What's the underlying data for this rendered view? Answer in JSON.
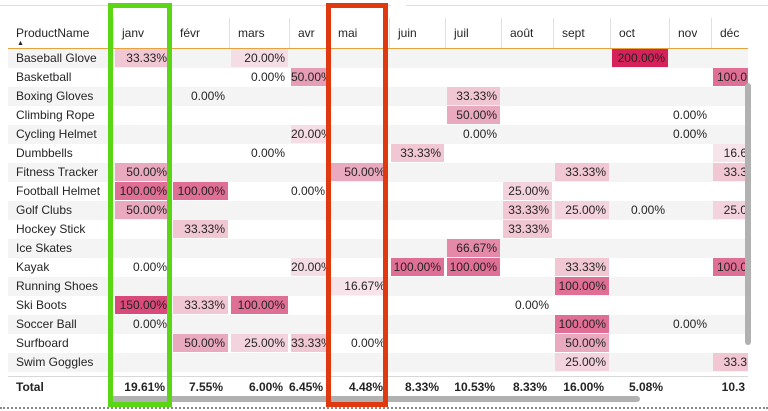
{
  "table": {
    "row_header": "ProductName",
    "months": [
      "janv",
      "févr",
      "mars",
      "avr",
      "mai",
      "juin",
      "juil",
      "août",
      "sept",
      "oct",
      "nov",
      "déc"
    ],
    "rows": [
      {
        "name": "Baseball Glove",
        "cells": [
          {
            "v": "33.33%",
            "c": "#f0c7d3"
          },
          null,
          {
            "v": "20.00%",
            "c": "#f5dde5"
          },
          null,
          null,
          null,
          null,
          null,
          null,
          {
            "v": "200.00%",
            "c": "#d6225a"
          },
          null,
          null
        ]
      },
      {
        "name": "Basketball",
        "cells": [
          null,
          null,
          {
            "v": "0.00%",
            "c": ""
          },
          {
            "v": "50.00%",
            "c": "#e79db5"
          },
          null,
          null,
          null,
          null,
          null,
          null,
          null,
          {
            "v": "100.0",
            "c": "#df6f95"
          }
        ]
      },
      {
        "name": "Boxing Gloves",
        "cells": [
          null,
          {
            "v": "0.00%",
            "c": ""
          },
          null,
          null,
          null,
          null,
          {
            "v": "33.33%",
            "c": "#f0c7d3"
          },
          null,
          null,
          null,
          null,
          null
        ]
      },
      {
        "name": "Climbing Rope",
        "cells": [
          null,
          null,
          null,
          null,
          null,
          null,
          {
            "v": "50.00%",
            "c": "#e9a9be"
          },
          null,
          null,
          null,
          {
            "v": "0.00%",
            "c": ""
          },
          null
        ]
      },
      {
        "name": "Cycling Helmet",
        "cells": [
          null,
          null,
          null,
          {
            "v": "20.00%",
            "c": "#f5dde5"
          },
          null,
          null,
          {
            "v": "0.00%",
            "c": ""
          },
          null,
          null,
          null,
          {
            "v": "0.00%",
            "c": ""
          },
          null
        ]
      },
      {
        "name": "Dumbbells",
        "cells": [
          null,
          null,
          {
            "v": "0.00%",
            "c": ""
          },
          null,
          null,
          {
            "v": "33.33%",
            "c": "#f0c7d3"
          },
          null,
          null,
          null,
          null,
          null,
          {
            "v": "16.6",
            "c": "#f7e3ea"
          }
        ]
      },
      {
        "name": "Fitness Tracker",
        "cells": [
          {
            "v": "50.00%",
            "c": "#e9a9be"
          },
          null,
          null,
          null,
          {
            "v": "50.00%",
            "c": "#e9a9be"
          },
          null,
          null,
          null,
          {
            "v": "33.33%",
            "c": "#f0c7d3"
          },
          null,
          null,
          {
            "v": "33.3",
            "c": "#f0c7d3"
          }
        ]
      },
      {
        "name": "Football Helmet",
        "cells": [
          {
            "v": "100.00%",
            "c": "#df6f95"
          },
          {
            "v": "100.00%",
            "c": "#df6f95"
          },
          null,
          {
            "v": "0.00%",
            "c": ""
          },
          null,
          null,
          null,
          {
            "v": "25.00%",
            "c": "#f3d3dd"
          },
          null,
          null,
          null,
          null
        ]
      },
      {
        "name": "Golf Clubs",
        "cells": [
          {
            "v": "50.00%",
            "c": "#e9a9be"
          },
          null,
          null,
          null,
          null,
          null,
          null,
          {
            "v": "33.33%",
            "c": "#f0c7d3"
          },
          {
            "v": "25.00%",
            "c": "#f3d3dd"
          },
          {
            "v": "0.00%",
            "c": ""
          },
          null,
          {
            "v": "25.0",
            "c": "#f3d3dd"
          }
        ]
      },
      {
        "name": "Hockey Stick",
        "cells": [
          null,
          {
            "v": "33.33%",
            "c": "#f0c7d3"
          },
          null,
          null,
          null,
          null,
          null,
          {
            "v": "33.33%",
            "c": "#f0c7d3"
          },
          null,
          null,
          null,
          null
        ]
      },
      {
        "name": "Ice Skates",
        "cells": [
          null,
          null,
          null,
          null,
          null,
          null,
          {
            "v": "66.67%",
            "c": "#e48aa8"
          },
          null,
          null,
          null,
          null,
          null
        ]
      },
      {
        "name": "Kayak",
        "cells": [
          {
            "v": "0.00%",
            "c": ""
          },
          null,
          null,
          {
            "v": "20.00%",
            "c": "#f5dde5"
          },
          null,
          {
            "v": "100.00%",
            "c": "#df6f95"
          },
          {
            "v": "100.00%",
            "c": "#df6f95"
          },
          null,
          {
            "v": "33.33%",
            "c": "#f0c7d3"
          },
          null,
          null,
          {
            "v": "100.0",
            "c": "#df6f95"
          }
        ]
      },
      {
        "name": "Running Shoes",
        "cells": [
          null,
          null,
          null,
          null,
          {
            "v": "16.67%",
            "c": "#f7e3ea"
          },
          null,
          null,
          null,
          {
            "v": "100.00%",
            "c": "#df6f95"
          },
          null,
          null,
          null
        ]
      },
      {
        "name": "Ski Boots",
        "cells": [
          {
            "v": "150.00%",
            "c": "#d94a7b"
          },
          {
            "v": "33.33%",
            "c": "#f0c7d3"
          },
          {
            "v": "100.00%",
            "c": "#df6f95"
          },
          null,
          null,
          null,
          null,
          {
            "v": "0.00%",
            "c": ""
          },
          null,
          null,
          null,
          null
        ]
      },
      {
        "name": "Soccer Ball",
        "cells": [
          {
            "v": "0.00%",
            "c": ""
          },
          null,
          null,
          null,
          null,
          null,
          null,
          null,
          {
            "v": "100.00%",
            "c": "#df6f95"
          },
          null,
          {
            "v": "0.00%",
            "c": ""
          },
          null
        ]
      },
      {
        "name": "Surfboard",
        "cells": [
          null,
          {
            "v": "50.00%",
            "c": "#e9a9be"
          },
          {
            "v": "25.00%",
            "c": "#f3d3dd"
          },
          {
            "v": "33.33%",
            "c": "#f0c7d3"
          },
          {
            "v": "0.00%",
            "c": ""
          },
          null,
          null,
          null,
          {
            "v": "50.00%",
            "c": "#e9a9be"
          },
          null,
          null,
          null
        ]
      },
      {
        "name": "Swim Goggles",
        "cells": [
          null,
          null,
          null,
          null,
          null,
          null,
          null,
          null,
          {
            "v": "25.00%",
            "c": "#f3d3dd"
          },
          null,
          null,
          {
            "v": "33.3",
            "c": "#f0c7d3"
          }
        ]
      }
    ],
    "total": {
      "label": "Total",
      "values": [
        "19.61%",
        "7.55%",
        "6.00%",
        "6.45%",
        "4.48%",
        "8.33%",
        "10.53%",
        "8.33%",
        "16.00%",
        "5.08%",
        "",
        "10.3"
      ]
    }
  }
}
